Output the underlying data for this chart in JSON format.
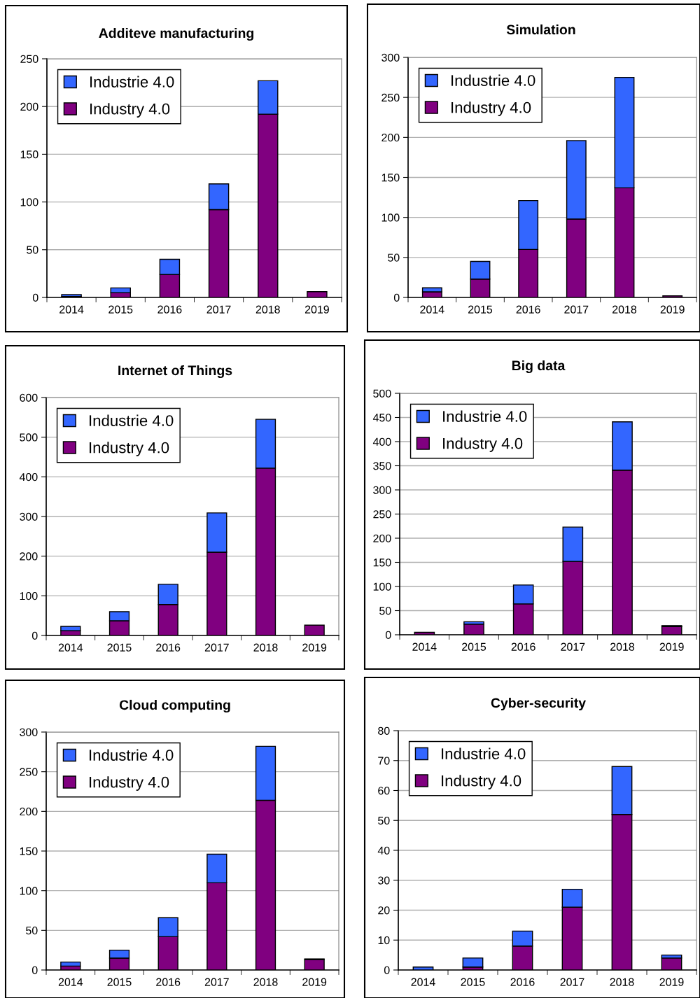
{
  "chart_data": [
    {
      "type": "bar",
      "title": "Additeve manufacturing",
      "categories": [
        "2014",
        "2015",
        "2016",
        "2017",
        "2018",
        "2019"
      ],
      "stacked": true,
      "ylim": [
        0,
        250
      ],
      "yticks": [
        0,
        50,
        100,
        150,
        200,
        250
      ],
      "grid": "y",
      "legend": "top left",
      "series": [
        {
          "name": "Industry 4.0",
          "color": "#800080",
          "values": [
            1,
            5,
            24,
            92,
            192,
            6
          ]
        },
        {
          "name": "Industrie 4.0",
          "color": "#3366ff",
          "values": [
            2,
            5,
            16,
            27,
            35,
            null
          ]
        }
      ]
    },
    {
      "type": "bar",
      "title": "Simulation",
      "categories": [
        "2014",
        "2015",
        "2016",
        "2017",
        "2018",
        "2019"
      ],
      "stacked": true,
      "ylim": [
        0,
        300
      ],
      "yticks": [
        0,
        50,
        100,
        150,
        200,
        250,
        300
      ],
      "grid": "y",
      "legend": "top left",
      "series": [
        {
          "name": "Industry 4.0",
          "color": "#800080",
          "values": [
            7,
            23,
            60,
            98,
            137,
            2
          ]
        },
        {
          "name": "Industrie 4.0",
          "color": "#3366ff",
          "values": [
            5,
            22,
            61,
            98,
            138,
            null
          ]
        }
      ]
    },
    {
      "type": "bar",
      "title": "Internet of Things",
      "categories": [
        "2014",
        "2015",
        "2016",
        "2017",
        "2018",
        "2019"
      ],
      "stacked": true,
      "ylim": [
        0,
        600
      ],
      "yticks": [
        0,
        100,
        200,
        300,
        400,
        500,
        600
      ],
      "grid": "y",
      "legend": "top left",
      "series": [
        {
          "name": "Industry 4.0",
          "color": "#800080",
          "values": [
            12,
            37,
            78,
            210,
            422,
            26
          ]
        },
        {
          "name": "Industrie 4.0",
          "color": "#3366ff",
          "values": [
            11,
            23,
            51,
            99,
            123,
            null
          ]
        }
      ]
    },
    {
      "type": "bar",
      "title": "Big data",
      "categories": [
        "2014",
        "2015",
        "2016",
        "2017",
        "2018",
        "2019"
      ],
      "stacked": true,
      "ylim": [
        0,
        500
      ],
      "yticks": [
        0,
        50,
        100,
        150,
        200,
        250,
        300,
        350,
        400,
        450,
        500
      ],
      "grid": "y",
      "legend": "top left",
      "series": [
        {
          "name": "Industry 4.0",
          "color": "#800080",
          "values": [
            5,
            22,
            64,
            152,
            341,
            17
          ]
        },
        {
          "name": "Industrie 4.0",
          "color": "#3366ff",
          "values": [
            null,
            5,
            39,
            71,
            100,
            2
          ]
        }
      ]
    },
    {
      "type": "bar",
      "title": "Cloud computing",
      "categories": [
        "2014",
        "2015",
        "2016",
        "2017",
        "2018",
        "2019"
      ],
      "stacked": true,
      "ylim": [
        0,
        300
      ],
      "yticks": [
        0,
        50,
        100,
        150,
        200,
        250,
        300
      ],
      "grid": "y",
      "legend": "top left",
      "series": [
        {
          "name": "Industry 4.0",
          "color": "#800080",
          "values": [
            5,
            15,
            42,
            110,
            214,
            13
          ]
        },
        {
          "name": "Industrie 4.0",
          "color": "#3366ff",
          "values": [
            5,
            10,
            24,
            36,
            68,
            1
          ]
        }
      ]
    },
    {
      "type": "bar",
      "title": "Cyber-security",
      "categories": [
        "2014",
        "2015",
        "2016",
        "2017",
        "2018",
        "2019"
      ],
      "stacked": true,
      "ylim": [
        0,
        80
      ],
      "yticks": [
        0,
        10,
        20,
        30,
        40,
        50,
        60,
        70,
        80
      ],
      "grid": "y",
      "legend": "top left",
      "series": [
        {
          "name": "Industry 4.0",
          "color": "#800080",
          "values": [
            null,
            1,
            8,
            21,
            52,
            4
          ]
        },
        {
          "name": "Industrie 4.0",
          "color": "#3366ff",
          "values": [
            1,
            3,
            5,
            6,
            16,
            1
          ]
        }
      ]
    }
  ]
}
